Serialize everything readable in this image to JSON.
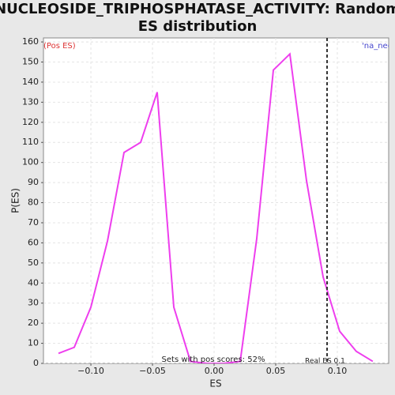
{
  "chart_data": {
    "type": "line",
    "title_lines": [
      "NUCLEOSIDE_TRIPHOSPHATASE_ACTIVITY: Random",
      "ES distribution"
    ],
    "x_label": "ES",
    "y_label": "P(ES)",
    "annotations": {
      "left": "(Pos ES)",
      "right": "'na_neg",
      "bottom": "Sets with pos scores: 52%",
      "real_es_label": "Real ES 0.1"
    },
    "real_es": 0.0917,
    "xlim": [
      -0.1385,
      0.1417
    ],
    "ylim": [
      0,
      162
    ],
    "xticks": [
      {
        "value": -0.1,
        "label": "−0.10"
      },
      {
        "value": -0.05,
        "label": "−0.05"
      },
      {
        "value": 0,
        "label": "0.00"
      },
      {
        "value": 0.05,
        "label": "0.05"
      },
      {
        "value": 0.1,
        "label": "0.10"
      }
    ],
    "yticks": [
      0,
      10,
      20,
      30,
      40,
      50,
      60,
      70,
      80,
      90,
      100,
      110,
      120,
      130,
      140,
      150,
      160
    ],
    "grid": true,
    "series": [
      {
        "color": "#ee3eee",
        "x": [
          -0.1263,
          -0.1135,
          -0.1,
          -0.0865,
          -0.0731,
          -0.0596,
          -0.0462,
          -0.0327,
          -0.0192,
          -0.0058,
          0.0077,
          0.0212,
          0.0346,
          0.0481,
          0.0615,
          0.075,
          0.0885,
          0.1019,
          0.1154,
          0.1288
        ],
        "values": [
          5,
          8,
          28,
          61,
          105,
          110,
          135,
          28,
          1,
          0,
          0,
          1,
          62,
          146,
          154,
          91,
          43,
          16,
          6,
          1
        ]
      }
    ]
  }
}
